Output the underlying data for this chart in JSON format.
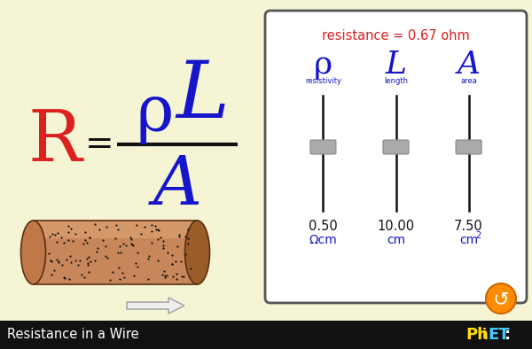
{
  "bg_color": "#f5f5d5",
  "formula_R_color": "#dd2020",
  "formula_rho_L_A_color": "#1515cc",
  "fraction_bar_color": "#111111",
  "resistance_label_color": "#dd2020",
  "slider_label_color": "#1515cc",
  "slider_track_color": "#111111",
  "slider_thumb_color": "#aaaaaa",
  "slider_thumb_edge": "#888888",
  "value_color": "#111111",
  "unit_color": "#1515cc",
  "cylinder_body": "#c8875a",
  "cylinder_light": "#dba070",
  "cylinder_dark": "#9a5c28",
  "cylinder_end_left": "#c07848",
  "cylinder_outline": "#5a3010",
  "dot_color": "#111111",
  "arrow_fill": "#eeeeee",
  "arrow_edge": "#aaaaaa",
  "panel_bg": "#ffffff",
  "panel_border": "#555555",
  "bottom_bar_color": "#111111",
  "bottom_text_color": "#ffffff",
  "phet_P_color": "#ffdd00",
  "phet_hET_color": "#44ccff",
  "orange_btn": "#ff8c00",
  "orange_btn_edge": "#cc6600",
  "title": "Resistance in a Wire",
  "resistance_text": "resistance = 0.67 ohm",
  "rho_label": "ρ",
  "L_label": "L",
  "A_label": "A",
  "resistivity_label": "resistivity",
  "length_label": "length",
  "area_label": "area",
  "rho_value": "0.50",
  "L_value": "10.00",
  "A_value": "7.50",
  "rho_unit": "Ωcm",
  "L_unit": "cm",
  "A_unit": "cm²",
  "fig_w": 6.0,
  "fig_h": 3.94,
  "dpi": 100
}
